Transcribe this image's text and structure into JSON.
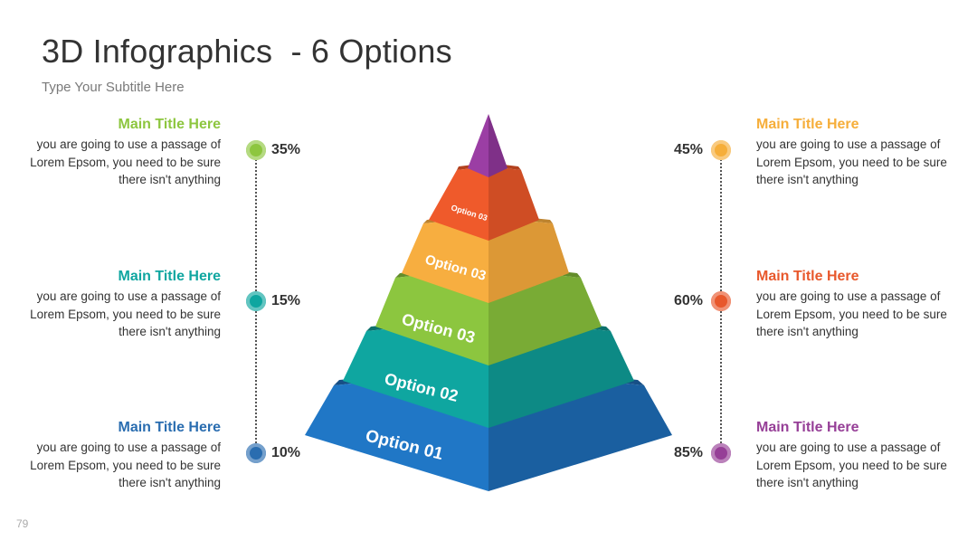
{
  "title": "3D Infographics  - 6 Options",
  "subtitle": "Type Your Subtitle Here",
  "page_number": "79",
  "left_items": [
    {
      "heading": "Main Title Here",
      "body": "you are going to use a passage of Lorem Epsom, you need to be sure there isn't anything",
      "percent": "35%",
      "color": "#8dc63f"
    },
    {
      "heading": "Main Title Here",
      "body": "you are going to use a passage of Lorem Epsom, you need to be sure there isn't anything",
      "percent": "15%",
      "color": "#0fa6a0"
    },
    {
      "heading": "Main Title Here",
      "body": "you are going to use a passage of Lorem Epsom, you need to be sure there isn't anything",
      "percent": "10%",
      "color": "#2a6db0"
    }
  ],
  "right_items": [
    {
      "heading": "Main Title Here",
      "body": "you are going to use a passage of Lorem Epsom, you need to be sure there isn't anything",
      "percent": "45%",
      "color": "#f6ae3a"
    },
    {
      "heading": "Main Title Here",
      "body": "you are going to use a passage of Lorem Epsom, you need to be sure there isn't anything",
      "percent": "60%",
      "color": "#e8582c"
    },
    {
      "heading": "Main Title Here",
      "body": "you are going to use a passage of Lorem Epsom, you need to be sure there isn't anything",
      "percent": "85%",
      "color": "#963f97"
    }
  ],
  "pyramid_levels": [
    {
      "label": "Option 01",
      "front": "#2077c6",
      "side": "#1a5fa0",
      "top": "#174f86"
    },
    {
      "label": "Option 02",
      "front": "#0fa6a0",
      "side": "#0d8a85",
      "top": "#0a706c"
    },
    {
      "label": "Option 03",
      "front": "#8cc63f",
      "side": "#79ab35",
      "top": "#638d2b"
    },
    {
      "label": "Option 03",
      "front": "#f7ae40",
      "side": "#dc9836",
      "top": "#bd832e"
    },
    {
      "label": "Option 03",
      "front": "#ef5a2b",
      "side": "#cf4d24",
      "top": "#b3421f"
    },
    {
      "label": "",
      "front": "#9b3ea4",
      "side": "#7f3088",
      "top": "#6d2775"
    }
  ]
}
